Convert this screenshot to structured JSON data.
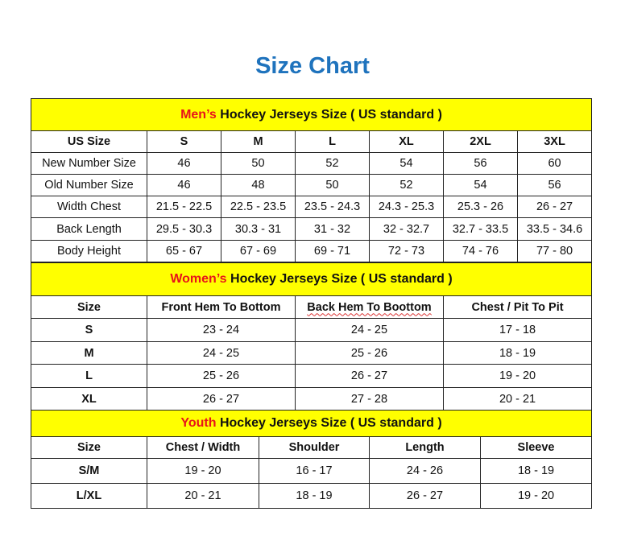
{
  "title": "Size Chart",
  "men": {
    "heading_highlight": "Men’s",
    "heading_rest": " Hockey Jerseys Size ( US standard )",
    "columns": [
      "US Size",
      "S",
      "M",
      "L",
      "XL",
      "2XL",
      "3XL"
    ],
    "rows": [
      [
        "New Number Size",
        "46",
        "50",
        "52",
        "54",
        "56",
        "60"
      ],
      [
        "Old Number Size",
        "46",
        "48",
        "50",
        "52",
        "54",
        "56"
      ],
      [
        "Width Chest",
        "21.5 - 22.5",
        "22.5 - 23.5",
        "23.5 - 24.3",
        "24.3 - 25.3",
        "25.3 - 26",
        "26 - 27"
      ],
      [
        "Back Length",
        "29.5 - 30.3",
        "30.3 - 31",
        "31 - 32",
        "32 - 32.7",
        "32.7 - 33.5",
        "33.5 - 34.6"
      ],
      [
        "Body Height",
        "65 - 67",
        "67 - 69",
        "69 - 71",
        "72 - 73",
        "74 - 76",
        "77 - 80"
      ]
    ]
  },
  "women": {
    "heading_highlight": "Women’s",
    "heading_rest": " Hockey Jerseys Size ( US standard )",
    "columns": [
      "Size",
      "Front Hem To Bottom",
      "Back Hem To Boottom",
      "Chest / Pit To Pit"
    ],
    "rows": [
      [
        "S",
        "23 - 24",
        "24 - 25",
        "17 - 18"
      ],
      [
        "M",
        "24 - 25",
        "25 - 26",
        "18 - 19"
      ],
      [
        "L",
        "25 - 26",
        "26 - 27",
        "19 - 20"
      ],
      [
        "XL",
        "26 - 27",
        "27 - 28",
        "20 - 21"
      ]
    ]
  },
  "youth": {
    "heading_highlight": "Youth",
    "heading_rest": " Hockey Jerseys Size ( US standard )",
    "columns": [
      "Size",
      "Chest / Width",
      "Shoulder",
      "Length",
      "Sleeve"
    ],
    "rows": [
      [
        "S/M",
        "19 - 20",
        "16 - 17",
        "24 - 26",
        "18 - 19"
      ],
      [
        "L/XL",
        "20 - 21",
        "18 - 19",
        "26 - 27",
        "19 - 20"
      ]
    ]
  },
  "colors": {
    "title": "#1f73bd",
    "band": "#ffff00",
    "highlight": "#e8141a"
  }
}
